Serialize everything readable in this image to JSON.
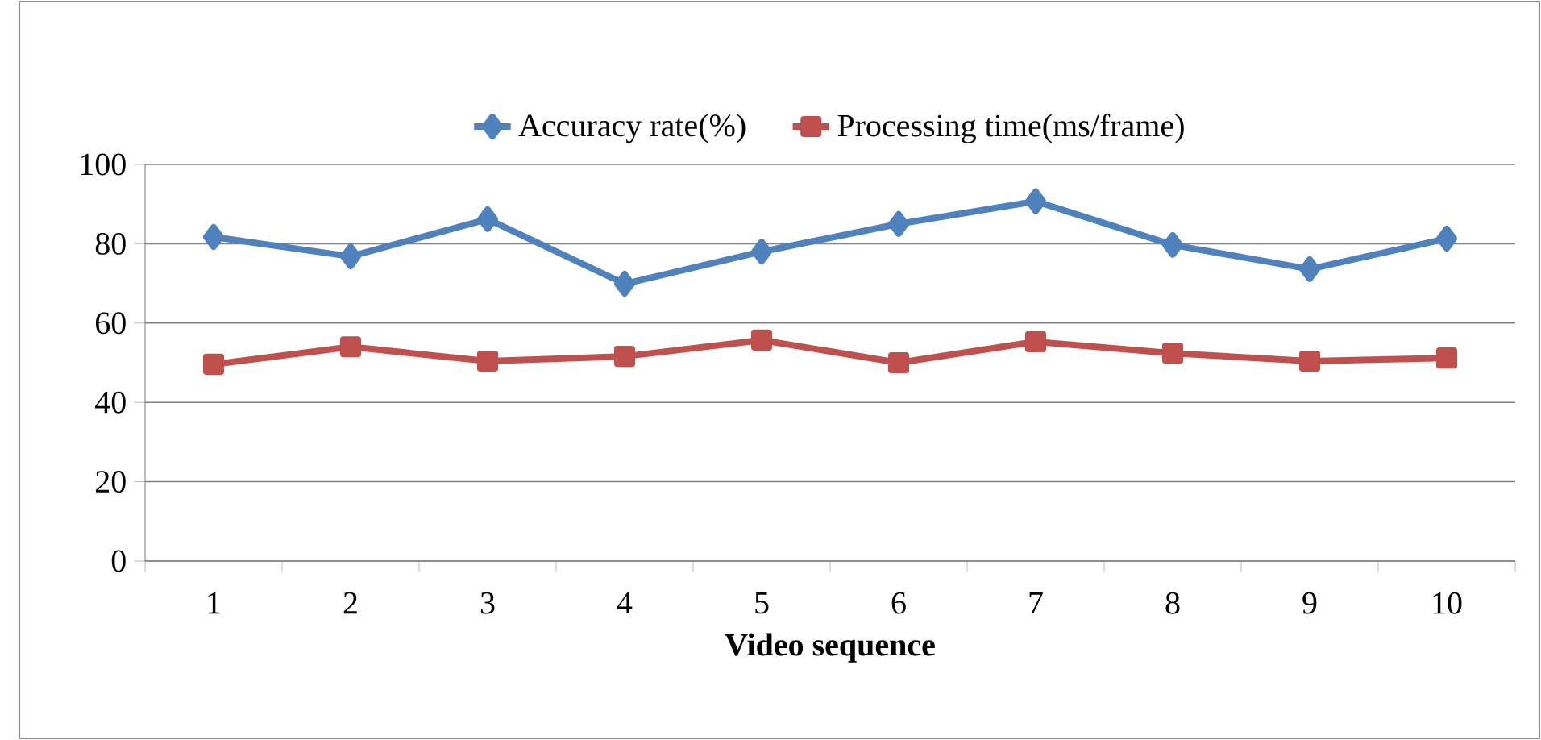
{
  "chart_data": {
    "type": "line",
    "xlabel": "Video sequence",
    "categories": [
      "1",
      "2",
      "3",
      "4",
      "5",
      "6",
      "7",
      "8",
      "9",
      "10"
    ],
    "series": [
      {
        "name": "Accuracy rate(%)",
        "color": "#4f81bd",
        "marker": "diamond",
        "values": [
          81.7,
          76.8,
          86.2,
          69.9,
          78,
          85,
          90.7,
          79.7,
          73.6,
          81.3
        ]
      },
      {
        "name": "Processing time(ms/frame)",
        "color": "#c0504d",
        "marker": "square",
        "values": [
          49.6,
          54,
          50.4,
          51.6,
          55.7,
          50,
          55.3,
          52.4,
          50.4,
          51.2
        ]
      }
    ],
    "ylim": [
      0,
      100
    ],
    "yticks": [
      0,
      20,
      40,
      60,
      80,
      100
    ],
    "grid": "y",
    "legend": "top"
  }
}
